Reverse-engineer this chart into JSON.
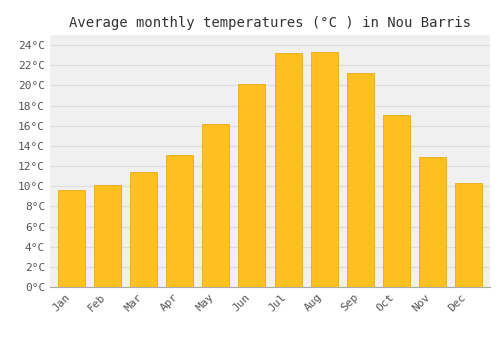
{
  "title": "Average monthly temperatures (°C ) in Nou Barris",
  "months": [
    "Jan",
    "Feb",
    "Mar",
    "Apr",
    "May",
    "Jun",
    "Jul",
    "Aug",
    "Sep",
    "Oct",
    "Nov",
    "Dec"
  ],
  "values": [
    9.6,
    10.1,
    11.4,
    13.1,
    16.2,
    20.1,
    23.2,
    23.3,
    21.2,
    17.1,
    12.9,
    10.3
  ],
  "bar_color_top": "#FFC020",
  "bar_color_bottom": "#FFB000",
  "bar_edge_color": "#E8A000",
  "background_color": "#FFFFFF",
  "plot_bg_color": "#F0F0F0",
  "grid_color": "#DDDDDD",
  "title_fontsize": 10,
  "tick_label_fontsize": 8,
  "ylim": [
    0,
    25
  ],
  "ytick_step": 2,
  "title_font": "monospace"
}
